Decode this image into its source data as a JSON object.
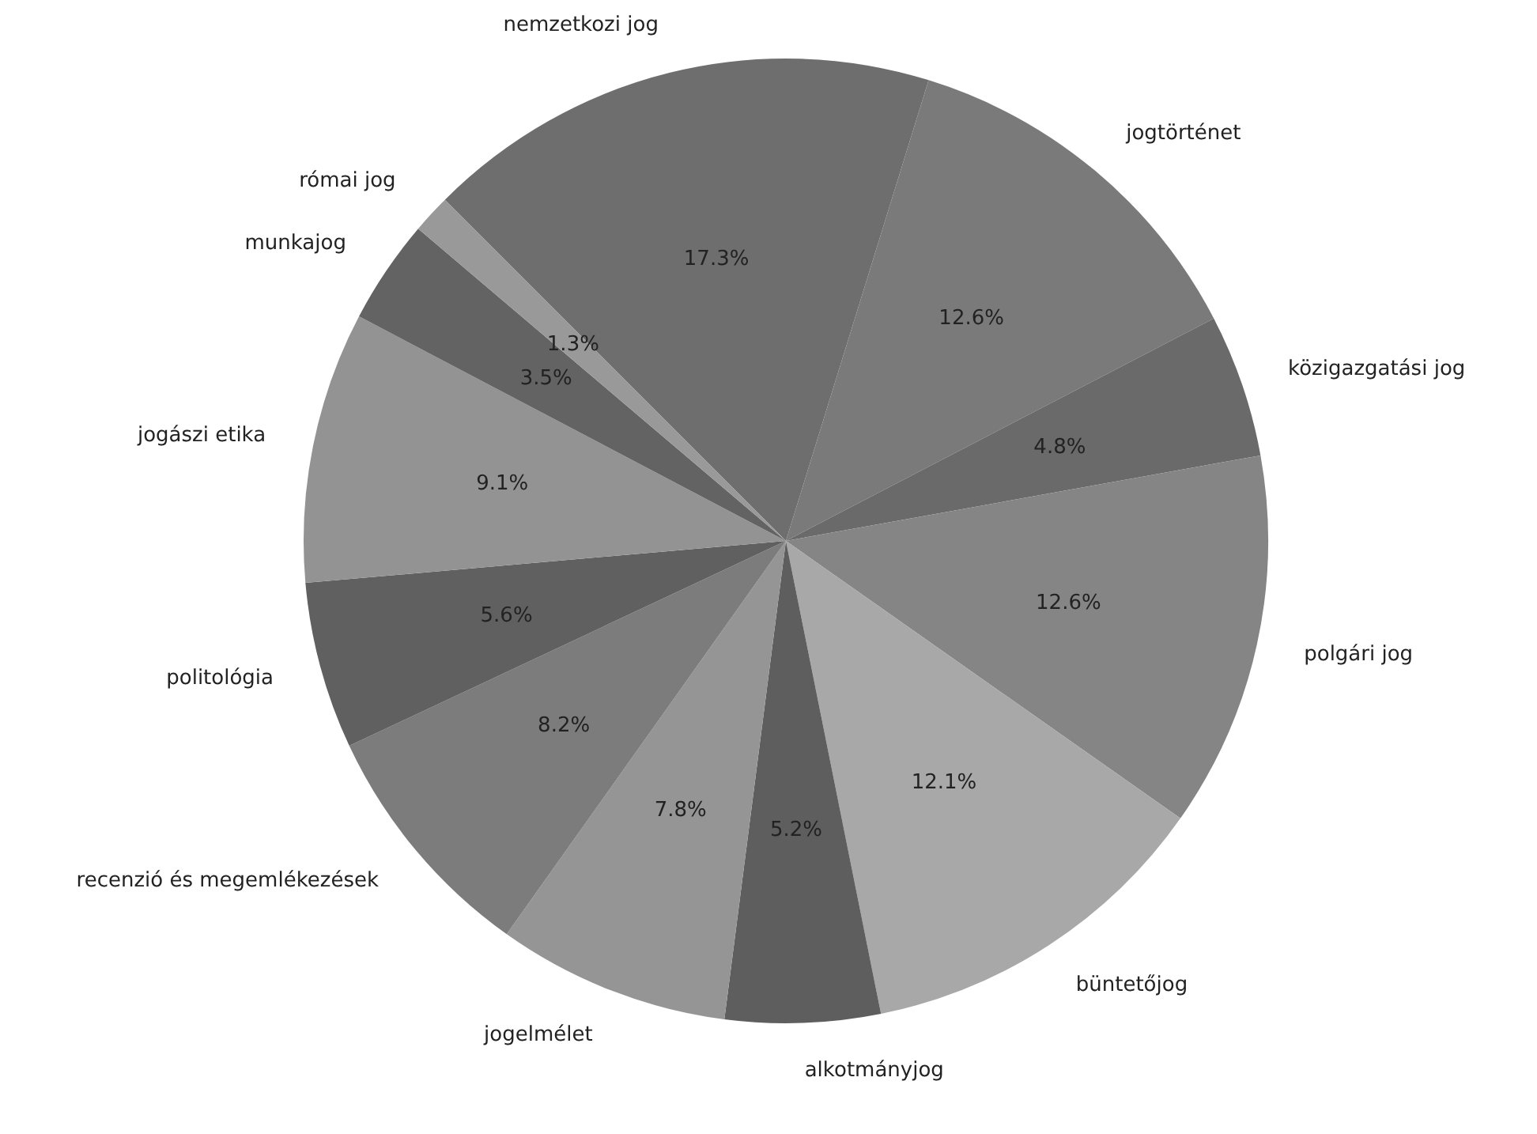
{
  "chart_data": {
    "type": "pie",
    "categories": [
      "nemzetkozi jog",
      "jogtörténet",
      "közigazgatási jog",
      "polgári jog",
      "büntetőjog",
      "alkotmányjog",
      "jogelmélet",
      "recenzió és megemlékezések",
      "politológia",
      "jogászi etika",
      "munkajog",
      "római jog"
    ],
    "values": [
      17.3,
      12.6,
      4.8,
      12.6,
      12.1,
      5.2,
      7.8,
      8.2,
      5.6,
      9.1,
      3.5,
      1.3
    ],
    "value_labels": [
      "17.3%",
      "12.6%",
      "4.8%",
      "12.6%",
      "12.1%",
      "5.2%",
      "7.8%",
      "8.2%",
      "5.6%",
      "9.1%",
      "3.5%",
      "1.3%"
    ],
    "colors": [
      "#6e6e6e",
      "#7a7a7a",
      "#6a6a6a",
      "#858585",
      "#a8a8a8",
      "#5e5e5e",
      "#959595",
      "#7c7c7c",
      "#606060",
      "#939393",
      "#636363",
      "#999999"
    ],
    "legend": false
  }
}
